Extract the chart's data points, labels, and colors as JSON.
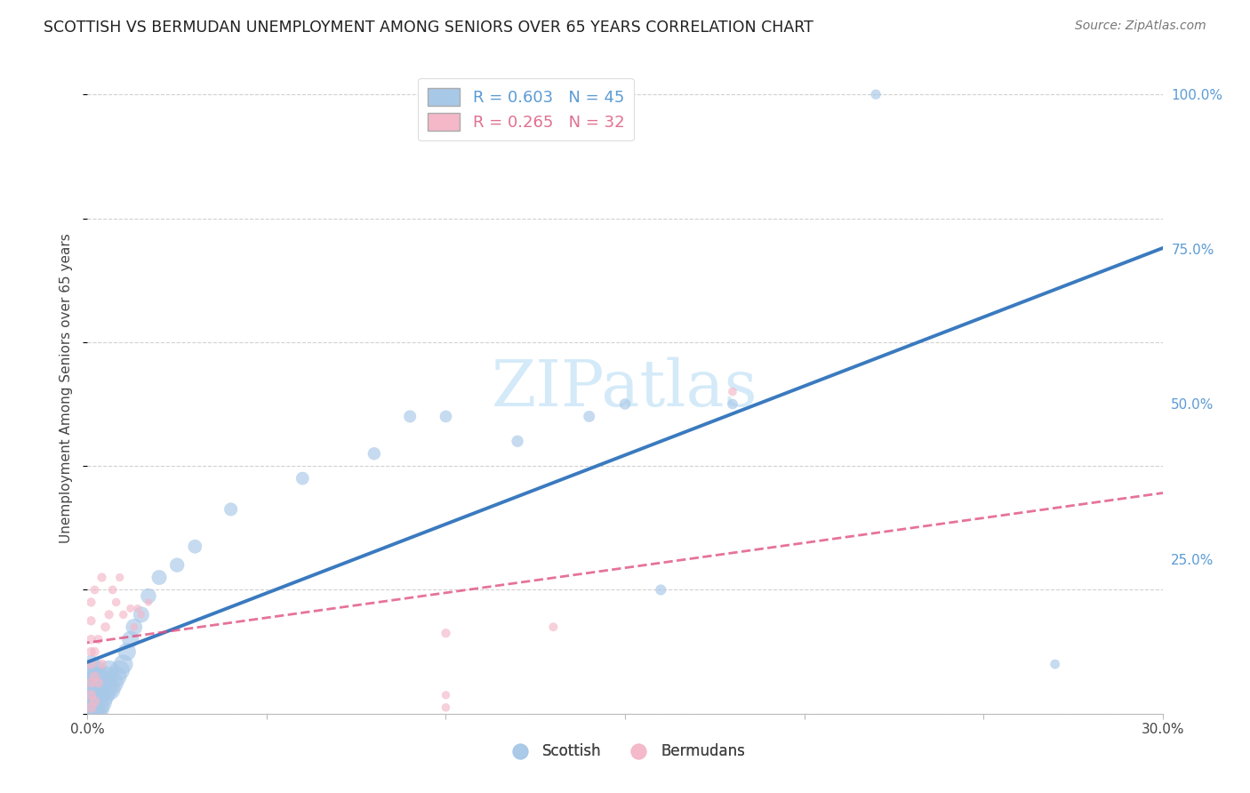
{
  "title": "SCOTTISH VS BERMUDAN UNEMPLOYMENT AMONG SENIORS OVER 65 YEARS CORRELATION CHART",
  "source": "Source: ZipAtlas.com",
  "ylabel": "Unemployment Among Seniors over 65 years",
  "xlim": [
    0.0,
    0.3
  ],
  "ylim": [
    0.0,
    1.05
  ],
  "scottish_color": "#a8c8e8",
  "bermudan_color": "#f4b8c8",
  "scottish_line_color": "#3a7abf",
  "bermudan_line_color": "#e05080",
  "watermark_color": "#d0e8f8",
  "scottish_x": [
    0.001,
    0.001,
    0.001,
    0.001,
    0.001,
    0.001,
    0.001,
    0.001,
    0.002,
    0.002,
    0.002,
    0.002,
    0.003,
    0.003,
    0.003,
    0.004,
    0.004,
    0.005,
    0.005,
    0.006,
    0.006,
    0.007,
    0.008,
    0.009,
    0.01,
    0.011,
    0.012,
    0.013,
    0.015,
    0.017,
    0.02,
    0.025,
    0.03,
    0.04,
    0.06,
    0.08,
    0.09,
    0.1,
    0.12,
    0.14,
    0.15,
    0.16,
    0.18,
    0.22,
    0.27
  ],
  "scottish_y": [
    0.005,
    0.01,
    0.02,
    0.03,
    0.04,
    0.05,
    0.06,
    0.08,
    0.01,
    0.03,
    0.05,
    0.07,
    0.02,
    0.04,
    0.06,
    0.03,
    0.05,
    0.04,
    0.06,
    0.04,
    0.07,
    0.05,
    0.06,
    0.07,
    0.08,
    0.1,
    0.12,
    0.14,
    0.16,
    0.19,
    0.22,
    0.24,
    0.27,
    0.33,
    0.38,
    0.42,
    0.48,
    0.48,
    0.44,
    0.48,
    0.5,
    0.2,
    0.5,
    1.0,
    0.08
  ],
  "scottish_sizes": [
    600,
    500,
    450,
    400,
    350,
    300,
    250,
    200,
    550,
    480,
    400,
    320,
    480,
    380,
    280,
    400,
    300,
    380,
    280,
    340,
    250,
    300,
    270,
    250,
    230,
    200,
    180,
    170,
    160,
    150,
    140,
    130,
    120,
    110,
    105,
    100,
    95,
    90,
    85,
    80,
    75,
    70,
    65,
    60,
    55
  ],
  "bermudan_x": [
    0.001,
    0.001,
    0.001,
    0.001,
    0.001,
    0.001,
    0.001,
    0.001,
    0.002,
    0.002,
    0.002,
    0.002,
    0.003,
    0.003,
    0.004,
    0.004,
    0.005,
    0.006,
    0.007,
    0.008,
    0.009,
    0.01,
    0.012,
    0.013,
    0.014,
    0.015,
    0.017,
    0.1,
    0.13,
    0.18,
    0.1,
    0.1
  ],
  "bermudan_y": [
    0.01,
    0.03,
    0.05,
    0.08,
    0.1,
    0.12,
    0.15,
    0.18,
    0.02,
    0.06,
    0.1,
    0.2,
    0.05,
    0.12,
    0.08,
    0.22,
    0.14,
    0.16,
    0.2,
    0.18,
    0.22,
    0.16,
    0.17,
    0.14,
    0.17,
    0.16,
    0.18,
    0.13,
    0.14,
    0.52,
    0.01,
    0.03
  ],
  "bermudan_sizes": [
    70,
    65,
    60,
    58,
    55,
    52,
    50,
    48,
    65,
    58,
    52,
    45,
    58,
    50,
    55,
    48,
    52,
    48,
    45,
    42,
    40,
    42,
    38,
    36,
    36,
    34,
    32,
    50,
    46,
    44,
    42,
    40
  ],
  "legend1_text": "R = 0.603   N = 45",
  "legend2_text": "R = 0.265   N = 32",
  "legend1_color": "#5b9bd5",
  "legend2_color": "#e07090",
  "tick_color": "#5b9bd5",
  "scottish_label": "Scottish",
  "bermudan_label": "Bermudans"
}
